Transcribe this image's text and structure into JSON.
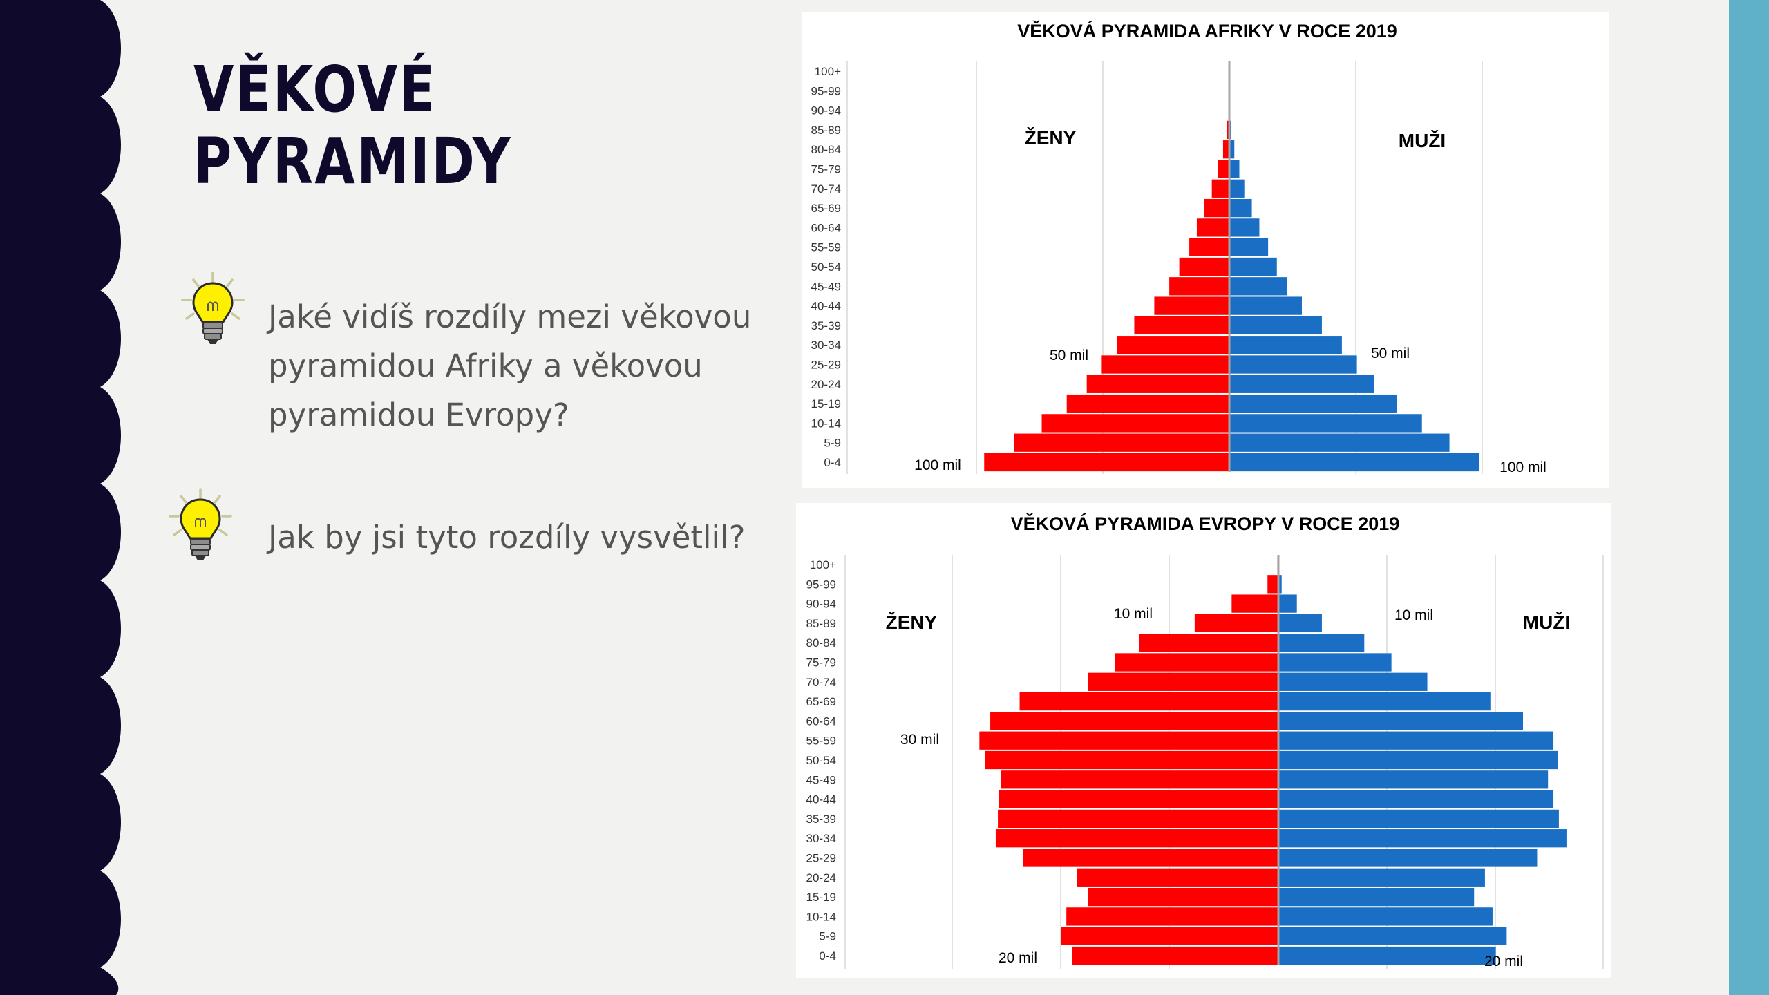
{
  "slide": {
    "title_line1": "VĚKOVÉ",
    "title_line2": "PYRAMIDY",
    "questions": [
      {
        "lines": [
          "Jaké vidíš rozdíly mezi věkovou",
          "pyramidou Afriky a věkovou",
          "pyramidou Evropy?"
        ],
        "icon": "lightbulb-icon"
      },
      {
        "lines": [
          "Jak by jsi tyto rozdíly vysvětlil?"
        ],
        "icon": "lightbulb-icon"
      }
    ],
    "colors": {
      "sidebar": "#0f0a2c",
      "accent_bar": "#5fb0c9",
      "female": "#ff0000",
      "male": "#1a6fc4",
      "background": "#f2f2f1"
    }
  },
  "chart_data": [
    {
      "type": "bar",
      "orientation": "horizontal",
      "title": "VĚKOVÁ PYRAMIDA AFRIKY V ROCE 2019",
      "categories": [
        "0-4",
        "5-9",
        "10-14",
        "15-19",
        "20-24",
        "25-29",
        "30-34",
        "35-39",
        "40-44",
        "45-49",
        "50-54",
        "55-59",
        "60-64",
        "65-69",
        "70-74",
        "75-79",
        "80-84",
        "85-89",
        "90-94",
        "95-99",
        "100+"
      ],
      "series": [
        {
          "name": "ŽENY",
          "values": [
            98,
            86,
            75,
            65,
            57,
            51,
            45,
            38,
            30,
            24,
            20,
            16,
            13,
            10,
            7,
            4.5,
            2.5,
            1,
            0.3,
            0.1,
            0
          ]
        },
        {
          "name": "MUŽI",
          "values": [
            100,
            88,
            77,
            67,
            58,
            51,
            45,
            37,
            29,
            23,
            19,
            15.5,
            12,
            9,
            6,
            4,
            2,
            0.8,
            0.2,
            0.05,
            0
          ]
        }
      ],
      "xlim": [
        -100,
        100
      ],
      "annotations": [
        "50 mil",
        "100 mil",
        "50 mil",
        "100 mil"
      ]
    },
    {
      "type": "bar",
      "orientation": "horizontal",
      "title": "VĚKOVÁ PYRAMIDA EVROPY V ROCE 2019",
      "categories": [
        "0-4",
        "5-9",
        "10-14",
        "15-19",
        "20-24",
        "25-29",
        "30-34",
        "35-39",
        "40-44",
        "45-49",
        "50-54",
        "55-59",
        "60-64",
        "65-69",
        "70-74",
        "75-79",
        "80-84",
        "85-89",
        "90-94",
        "95-99",
        "100+"
      ],
      "series": [
        {
          "name": "ŽENY",
          "values": [
            19,
            20,
            19.5,
            17.5,
            18.5,
            23.5,
            26,
            25.8,
            25.7,
            25.5,
            27,
            27.5,
            26.5,
            23.8,
            17.5,
            15,
            12.8,
            7.7,
            4.3,
            1,
            0.1
          ]
        },
        {
          "name": "MUŽI",
          "values": [
            20,
            21,
            19.7,
            18,
            19,
            23.8,
            26.5,
            25.8,
            25.3,
            24.8,
            25.7,
            25.3,
            22.5,
            19.5,
            13.7,
            10.4,
            7.9,
            4,
            1.7,
            0.3,
            0.02
          ]
        }
      ],
      "xlim": [
        -30,
        30
      ],
      "annotations": [
        "10 mil",
        "30 mil",
        "20 mil",
        "10 mil",
        "20 mil"
      ]
    }
  ]
}
